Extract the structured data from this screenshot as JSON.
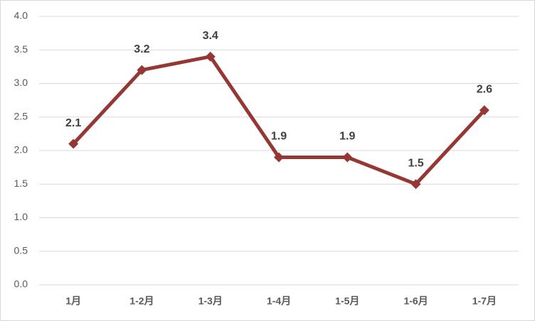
{
  "chart_data": {
    "type": "line",
    "categories": [
      "1月",
      "1-2月",
      "1-3月",
      "1-4月",
      "1-5月",
      "1-6月",
      "1-7月"
    ],
    "series": [
      {
        "color": "#953735",
        "values": [
          2.1,
          3.2,
          3.4,
          1.9,
          1.9,
          1.5,
          2.6
        ]
      }
    ],
    "ylim": [
      0,
      4
    ],
    "yticks": [
      {
        "value": 0,
        "label": "0.0"
      },
      {
        "value": 0.5,
        "label": "0.5"
      },
      {
        "value": 1,
        "label": "1.0"
      },
      {
        "value": 1.5,
        "label": "1.5"
      },
      {
        "value": 2,
        "label": "2.0"
      },
      {
        "value": 2.5,
        "label": "2.5"
      },
      {
        "value": 3,
        "label": "3.0"
      },
      {
        "value": 3.5,
        "label": "3.5"
      },
      {
        "value": 4,
        "label": "4.0"
      }
    ],
    "grid": true
  }
}
